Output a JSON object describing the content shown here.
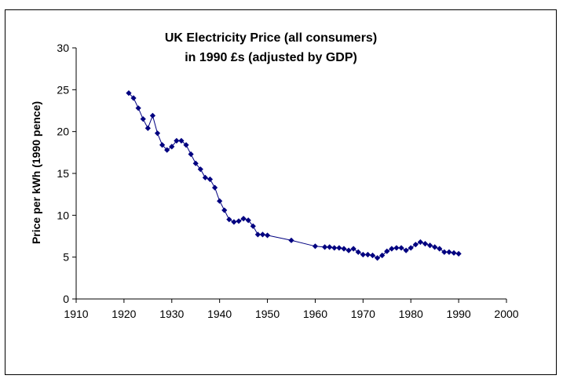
{
  "chart_data": {
    "type": "line",
    "title": "UK Electricity Price (all consumers)",
    "subtitle": "in 1990 £s (adjusted by GDP)",
    "xlabel": "",
    "ylabel": "Price per kWh (1990 pence)",
    "xlim": [
      1910,
      2000
    ],
    "ylim": [
      0,
      30
    ],
    "xticks": [
      1910,
      1920,
      1930,
      1940,
      1950,
      1960,
      1970,
      1980,
      1990,
      2000
    ],
    "yticks": [
      0,
      5,
      10,
      15,
      20,
      25,
      30
    ],
    "grid": false,
    "legend": "none",
    "series_color": "#000080",
    "series": [
      {
        "name": "Price",
        "x": [
          1921,
          1922,
          1923,
          1924,
          1925,
          1926,
          1927,
          1928,
          1929,
          1930,
          1931,
          1932,
          1933,
          1934,
          1935,
          1936,
          1937,
          1938,
          1939,
          1940,
          1941,
          1942,
          1943,
          1944,
          1945,
          1946,
          1947,
          1948,
          1949,
          1950,
          1955,
          1960,
          1962,
          1963,
          1964,
          1965,
          1966,
          1967,
          1968,
          1969,
          1970,
          1971,
          1972,
          1973,
          1974,
          1975,
          1976,
          1977,
          1978,
          1979,
          1980,
          1981,
          1982,
          1983,
          1984,
          1985,
          1986,
          1987,
          1988,
          1989,
          1990
        ],
        "values": [
          24.6,
          24.0,
          22.8,
          21.5,
          20.4,
          21.9,
          19.8,
          18.4,
          17.8,
          18.2,
          18.9,
          18.9,
          18.4,
          17.3,
          16.2,
          15.5,
          14.5,
          14.3,
          13.3,
          11.7,
          10.6,
          9.5,
          9.2,
          9.3,
          9.6,
          9.4,
          8.7,
          7.7,
          7.7,
          7.6,
          7.0,
          6.3,
          6.2,
          6.2,
          6.1,
          6.1,
          6.0,
          5.8,
          6.0,
          5.6,
          5.3,
          5.3,
          5.2,
          4.9,
          5.2,
          5.7,
          6.0,
          6.1,
          6.1,
          5.8,
          6.1,
          6.5,
          6.8,
          6.6,
          6.4,
          6.2,
          6.0,
          5.6,
          5.6,
          5.5,
          5.4
        ]
      }
    ]
  }
}
